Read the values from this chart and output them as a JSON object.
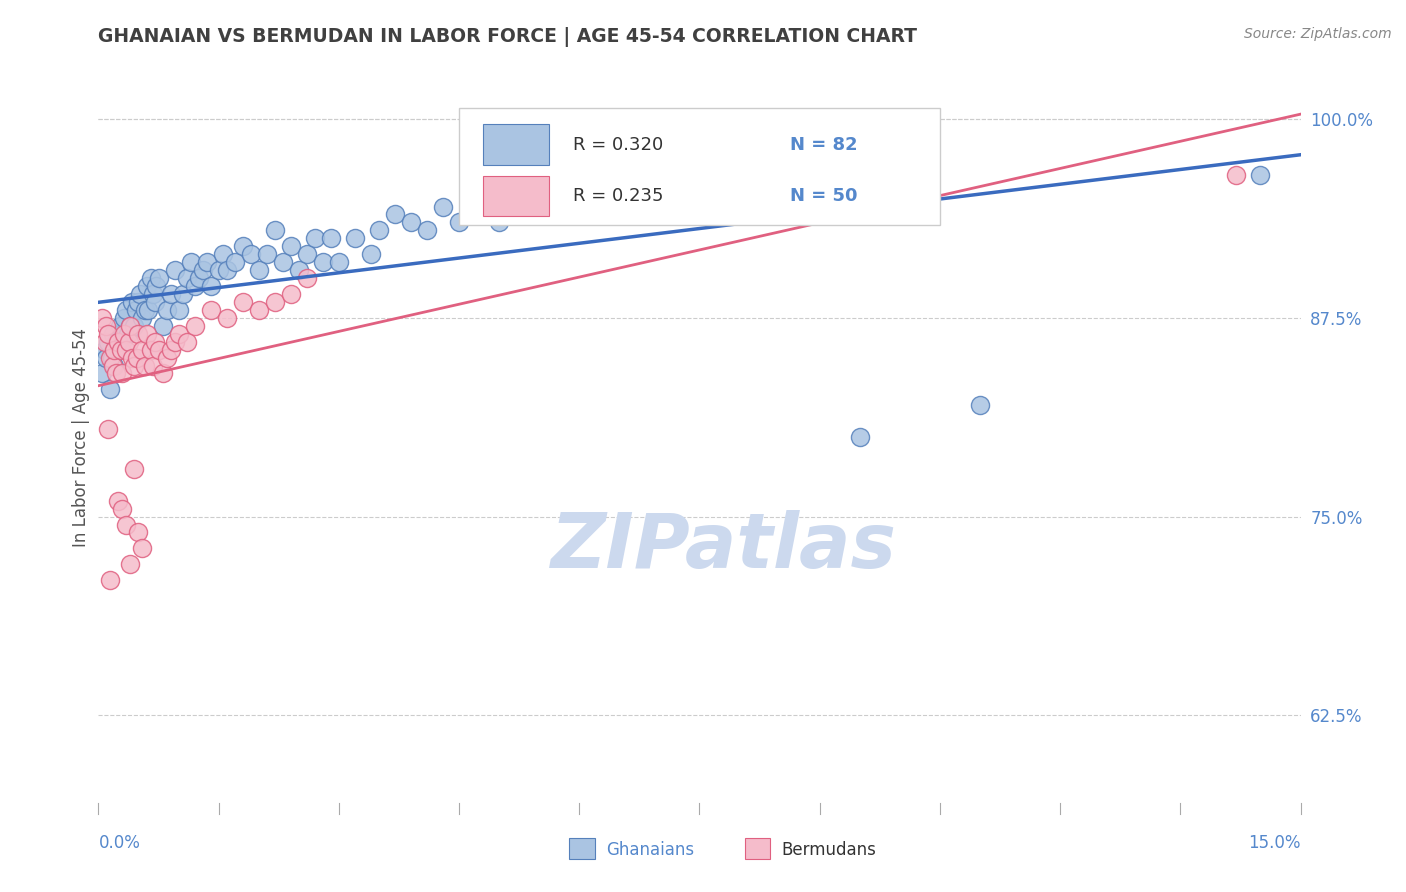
{
  "title": "GHANAIAN VS BERMUDAN IN LABOR FORCE | AGE 45-54 CORRELATION CHART",
  "source_text": "Source: ZipAtlas.com",
  "ylabel": "In Labor Force | Age 45-54",
  "xmin": 0.0,
  "xmax": 15.0,
  "ymin": 57.0,
  "ymax": 103.0,
  "yticks": [
    62.5,
    75.0,
    87.5,
    100.0
  ],
  "ytick_labels": [
    "62.5%",
    "75.0%",
    "87.5%",
    "100.0%"
  ],
  "ghanaian_color": "#aac4e2",
  "ghanaian_edge_color": "#5580bb",
  "bermudan_color": "#f5bccb",
  "bermudan_edge_color": "#e06080",
  "ghanaian_line_color": "#3a6bbf",
  "bermudan_line_color": "#e06080",
  "legend_R_ghanaian": "R = 0.320",
  "legend_N_ghanaian": "N = 82",
  "legend_R_bermudan": "R = 0.235",
  "legend_N_bermudan": "N = 50",
  "title_color": "#404040",
  "axis_label_color": "#5588cc",
  "source_color": "#888888",
  "watermark_color": "#ccd9ee",
  "background_color": "#ffffff",
  "grid_color": "#cccccc",
  "bottom_tick_color": "#aaaaaa",
  "ghanaian_x": [
    0.05,
    0.08,
    0.1,
    0.12,
    0.15,
    0.17,
    0.18,
    0.2,
    0.22,
    0.25,
    0.27,
    0.3,
    0.32,
    0.35,
    0.37,
    0.4,
    0.42,
    0.45,
    0.47,
    0.5,
    0.52,
    0.55,
    0.58,
    0.6,
    0.62,
    0.65,
    0.68,
    0.7,
    0.72,
    0.75,
    0.8,
    0.85,
    0.9,
    0.95,
    1.0,
    1.05,
    1.1,
    1.15,
    1.2,
    1.25,
    1.3,
    1.35,
    1.4,
    1.5,
    1.55,
    1.6,
    1.7,
    1.8,
    1.9,
    2.0,
    2.1,
    2.2,
    2.3,
    2.4,
    2.5,
    2.6,
    2.7,
    2.8,
    2.9,
    3.0,
    3.2,
    3.4,
    3.5,
    3.7,
    3.9,
    4.1,
    4.3,
    4.5,
    4.8,
    5.0,
    5.3,
    5.5,
    5.8,
    6.0,
    6.5,
    7.0,
    7.5,
    8.0,
    9.0,
    9.5,
    11.0,
    14.5
  ],
  "ghanaian_y": [
    84.0,
    85.5,
    85.0,
    86.0,
    83.0,
    85.0,
    86.5,
    84.5,
    86.0,
    85.5,
    87.0,
    86.0,
    87.5,
    88.0,
    86.5,
    87.0,
    88.5,
    87.0,
    88.0,
    88.5,
    89.0,
    87.5,
    88.0,
    89.5,
    88.0,
    90.0,
    89.0,
    88.5,
    89.5,
    90.0,
    87.0,
    88.0,
    89.0,
    90.5,
    88.0,
    89.0,
    90.0,
    91.0,
    89.5,
    90.0,
    90.5,
    91.0,
    89.5,
    90.5,
    91.5,
    90.5,
    91.0,
    92.0,
    91.5,
    90.5,
    91.5,
    93.0,
    91.0,
    92.0,
    90.5,
    91.5,
    92.5,
    91.0,
    92.5,
    91.0,
    92.5,
    91.5,
    93.0,
    94.0,
    93.5,
    93.0,
    94.5,
    93.5,
    94.0,
    93.5,
    95.0,
    94.0,
    95.0,
    94.5,
    95.5,
    95.0,
    96.0,
    95.0,
    96.0,
    80.0,
    82.0,
    96.5
  ],
  "bermudan_x": [
    0.05,
    0.08,
    0.1,
    0.12,
    0.15,
    0.18,
    0.2,
    0.22,
    0.25,
    0.28,
    0.3,
    0.32,
    0.35,
    0.38,
    0.4,
    0.42,
    0.45,
    0.48,
    0.5,
    0.55,
    0.58,
    0.6,
    0.65,
    0.68,
    0.7,
    0.75,
    0.8,
    0.85,
    0.9,
    0.95,
    1.0,
    1.1,
    1.2,
    1.4,
    1.6,
    1.8,
    2.0,
    2.2,
    2.4,
    2.6,
    0.25,
    0.3,
    0.35,
    0.4,
    0.45,
    0.5,
    0.55,
    0.12,
    0.15,
    14.2
  ],
  "bermudan_y": [
    87.5,
    86.0,
    87.0,
    86.5,
    85.0,
    84.5,
    85.5,
    84.0,
    86.0,
    85.5,
    84.0,
    86.5,
    85.5,
    86.0,
    87.0,
    85.0,
    84.5,
    85.0,
    86.5,
    85.5,
    84.5,
    86.5,
    85.5,
    84.5,
    86.0,
    85.5,
    84.0,
    85.0,
    85.5,
    86.0,
    86.5,
    86.0,
    87.0,
    88.0,
    87.5,
    88.5,
    88.0,
    88.5,
    89.0,
    90.0,
    76.0,
    75.5,
    74.5,
    72.0,
    78.0,
    74.0,
    73.0,
    80.5,
    71.0,
    96.5
  ]
}
